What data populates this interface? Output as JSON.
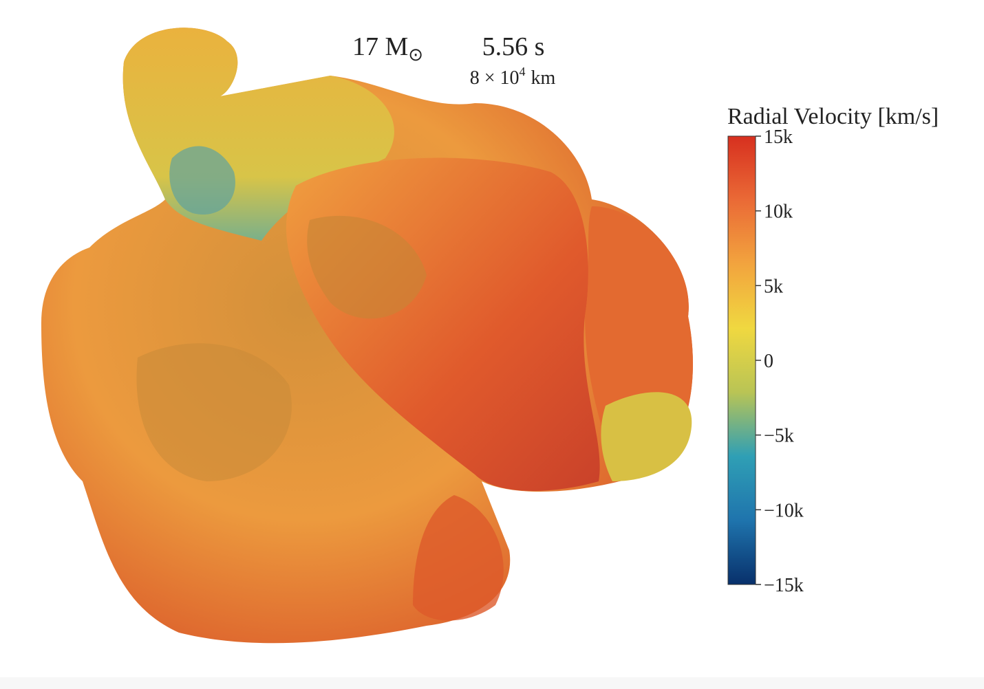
{
  "annotation": {
    "mass": "17 M",
    "mass_sub": "⊙",
    "time": "5.56 s",
    "scale_base": "8 × 10",
    "scale_exp": "4",
    "scale_unit": "km"
  },
  "colorbar": {
    "title": "Radial Velocity [km/s]",
    "range": [
      -15000,
      15000
    ],
    "colors": [
      "#08306b",
      "#1f74ad",
      "#2f9fb5",
      "#b9c455",
      "#f0d840",
      "#f2a43e",
      "#ea6a36",
      "#d7301f"
    ],
    "ticks": [
      {
        "value": 15000,
        "label": "15k"
      },
      {
        "value": 10000,
        "label": "10k"
      },
      {
        "value": 5000,
        "label": "5k"
      },
      {
        "value": 0,
        "label": "0"
      },
      {
        "value": -5000,
        "label": "−5k"
      },
      {
        "value": -10000,
        "label": "−10k"
      },
      {
        "value": -15000,
        "label": "−15k"
      }
    ]
  }
}
